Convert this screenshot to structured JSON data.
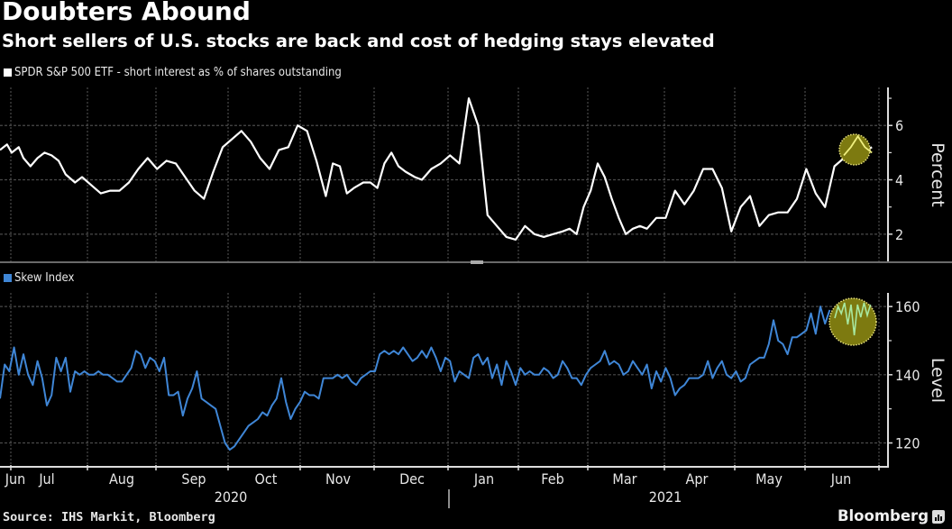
{
  "header": {
    "title": "Doubters Abound",
    "subtitle": "Short sellers of U.S. stocks are back and cost of hedging stays elevated"
  },
  "footer": {
    "source": "Source: IHS Markit, Bloomberg",
    "brand": "Bloomberg"
  },
  "colors": {
    "background": "#000000",
    "short_interest_line": "#ffffff",
    "skew_line": "#3f86d6",
    "highlight_fill": "#7d7a10",
    "highlight_border": "#e6e07a",
    "highlight_line": "#a8e8a0",
    "grid": "#5a5a5a"
  },
  "chart_data": [
    {
      "type": "line",
      "panel": "top",
      "legend": "SPDR S&P 500 ETF - short interest as % of shares outstanding",
      "ylabel": "Percent",
      "ylim": [
        1.0,
        7.4
      ],
      "yticks": [
        2,
        4,
        6
      ],
      "ytick_labels": [
        "2",
        "4",
        "6"
      ],
      "grid": true,
      "highlight": "circle around latest values (Jun 2021)",
      "series": [
        {
          "name": "SPDR S&P 500 ETF - short interest as % of shares outstanding",
          "x": [
            0,
            3,
            5,
            8,
            10,
            13,
            16,
            19,
            22,
            25,
            28,
            32,
            35,
            39,
            43,
            47,
            51,
            55,
            59,
            63,
            67,
            71,
            75,
            79,
            83,
            87,
            91,
            95,
            99,
            103,
            107,
            111,
            115,
            119,
            123,
            127,
            131,
            135,
            139,
            142,
            145,
            148,
            151,
            155,
            158,
            161,
            164,
            167,
            170,
            173,
            177,
            180,
            184,
            188,
            192,
            196,
            200,
            204,
            208,
            212,
            216,
            220,
            224,
            228,
            232,
            236,
            240,
            243,
            246,
            249,
            252,
            255,
            258,
            261,
            264,
            267,
            270,
            273,
            276,
            280,
            284,
            288,
            292,
            296,
            300,
            304,
            308,
            312,
            316,
            320,
            324,
            328,
            332,
            336,
            340,
            344,
            348,
            352,
            356,
            360,
            364,
            368,
            372
          ],
          "y": [
            5.1,
            5.3,
            5.0,
            5.2,
            4.8,
            4.5,
            4.8,
            5.0,
            4.9,
            4.7,
            4.2,
            3.9,
            4.1,
            3.8,
            3.5,
            3.6,
            3.6,
            3.9,
            4.4,
            4.8,
            4.4,
            4.7,
            4.6,
            4.1,
            3.6,
            3.3,
            4.3,
            5.2,
            5.5,
            5.8,
            5.4,
            4.8,
            4.4,
            5.1,
            5.2,
            6.0,
            5.8,
            4.7,
            3.4,
            4.6,
            4.5,
            3.5,
            3.7,
            3.9,
            3.9,
            3.7,
            4.6,
            5.0,
            4.5,
            4.3,
            4.1,
            4.0,
            4.4,
            4.6,
            4.9,
            4.6,
            7.0,
            6.0,
            2.7,
            2.3,
            1.9,
            1.8,
            2.3,
            2.0,
            1.9,
            2.0,
            2.1,
            2.2,
            2.0,
            3.0,
            3.6,
            4.6,
            4.1,
            3.3,
            2.6,
            2.0,
            2.2,
            2.3,
            2.2,
            2.6,
            2.6,
            3.6,
            3.1,
            3.6,
            4.4,
            4.4,
            3.7,
            2.1,
            3.0,
            3.4,
            2.3,
            2.7,
            2.8,
            2.8,
            3.3,
            4.4,
            3.5,
            3.0,
            4.5,
            4.8,
            4.6,
            5.0,
            5.2
          ],
          "annotation_points": {
            "x": [
              360,
              363,
              366,
              369,
              372
            ],
            "y": [
              4.9,
              5.2,
              5.6,
              5.2,
              5.0
            ]
          }
        }
      ]
    },
    {
      "type": "line",
      "panel": "bottom",
      "legend": "Skew Index",
      "ylabel": "Level",
      "ylim": [
        113,
        164
      ],
      "yticks": [
        120,
        140,
        160
      ],
      "ytick_labels": [
        "120",
        "140",
        "160"
      ],
      "grid": true,
      "highlight": "circle around latest values (Jun 2021)",
      "series": [
        {
          "name": "Skew Index",
          "x": [
            0,
            2,
            4,
            6,
            8,
            10,
            12,
            14,
            16,
            18,
            20,
            22,
            24,
            26,
            28,
            30,
            32,
            34,
            36,
            38,
            40,
            42,
            44,
            46,
            48,
            50,
            52,
            54,
            56,
            58,
            60,
            62,
            64,
            66,
            68,
            70,
            72,
            74,
            76,
            78,
            80,
            82,
            84,
            86,
            88,
            90,
            92,
            94,
            96,
            98,
            100,
            102,
            104,
            106,
            108,
            110,
            112,
            114,
            116,
            118,
            120,
            122,
            124,
            126,
            128,
            130,
            132,
            134,
            136,
            138,
            140,
            142,
            144,
            146,
            148,
            150,
            152,
            154,
            156,
            158,
            160,
            162,
            164,
            166,
            168,
            170,
            172,
            174,
            176,
            178,
            180,
            182,
            184,
            186,
            188,
            190,
            192,
            194,
            196,
            198,
            200,
            202,
            204,
            206,
            208,
            210,
            212,
            214,
            216,
            218,
            220,
            222,
            224,
            226,
            228,
            230,
            232,
            234,
            236,
            238,
            240,
            242,
            244,
            246,
            248,
            250,
            252,
            254,
            256,
            258,
            260,
            262,
            264,
            266,
            268,
            270,
            272,
            274,
            276,
            278,
            280,
            282,
            284,
            286,
            288,
            290,
            292,
            294,
            296,
            298,
            300,
            302,
            304,
            306,
            308,
            310,
            312,
            314,
            316,
            318,
            320,
            322,
            324,
            326,
            328,
            330,
            332,
            334,
            336,
            338,
            340,
            342,
            344,
            346,
            348,
            350,
            352,
            354
          ],
          "y": [
            133,
            143,
            141,
            148,
            140,
            146,
            140,
            137,
            144,
            139,
            131,
            134,
            145,
            141,
            145,
            135,
            141,
            140,
            141,
            140,
            140,
            141,
            140,
            140,
            139,
            138,
            138,
            140,
            142,
            147,
            146,
            142,
            145,
            144,
            141,
            145,
            134,
            134,
            135,
            128,
            133,
            136,
            141,
            133,
            132,
            131,
            130,
            125,
            120,
            118,
            119,
            121,
            123,
            125,
            126,
            127,
            129,
            128,
            131,
            133,
            139,
            132,
            127,
            130,
            132,
            135,
            134,
            134,
            133,
            139,
            139,
            139,
            140,
            139,
            140,
            138,
            137,
            139,
            140,
            141,
            141,
            146,
            147,
            146,
            147,
            146,
            148,
            146,
            144,
            145,
            147,
            145,
            148,
            145,
            141,
            145,
            144,
            138,
            141,
            140,
            139,
            145,
            146,
            143,
            145,
            139,
            143,
            137,
            144,
            141,
            137,
            142,
            140,
            141,
            140,
            140,
            142,
            141,
            139,
            140,
            144,
            142,
            139,
            139,
            137,
            140,
            142,
            143,
            144,
            147,
            143,
            144,
            143,
            140,
            141,
            144,
            142,
            140,
            143,
            136,
            141,
            138,
            142,
            139,
            134,
            136,
            137,
            139,
            139,
            139,
            140,
            144,
            139,
            142,
            144,
            140,
            139,
            141,
            138,
            139,
            143,
            144,
            145,
            145,
            149,
            156,
            150,
            149,
            146,
            151,
            151,
            152,
            153,
            158,
            152,
            160,
            155,
            159
          ]
        }
      ]
    }
  ],
  "x_axis": {
    "months": [
      "Jun",
      "Jul",
      "Aug",
      "Sep",
      "Oct",
      "Nov",
      "Dec",
      "Jan",
      "Feb",
      "Mar",
      "Apr",
      "May",
      "Jun"
    ],
    "years": [
      "2020",
      "2021"
    ]
  }
}
